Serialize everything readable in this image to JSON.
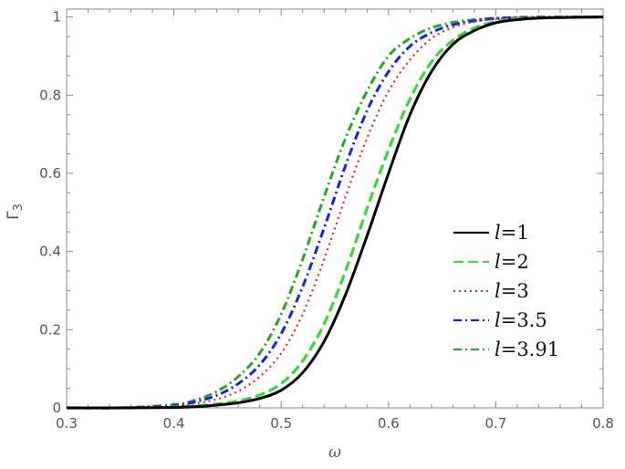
{
  "chart_data": {
    "type": "line",
    "title": "",
    "xlabel": "ω",
    "ylabel": "Γ",
    "ylabel_subscript": "3",
    "xlim": [
      0.3,
      0.8
    ],
    "ylim": [
      0,
      1.02
    ],
    "x_ticks": [
      "0.3",
      "0.4",
      "0.5",
      "0.6",
      "0.7",
      "0.8"
    ],
    "y_ticks": [
      "0",
      "0.2",
      "0.4",
      "0.6",
      "0.8",
      "1"
    ],
    "grid": false,
    "legend_position": "center-right",
    "x": [
      0.3,
      0.35,
      0.4,
      0.42,
      0.44,
      0.46,
      0.48,
      0.5,
      0.52,
      0.54,
      0.56,
      0.58,
      0.6,
      0.62,
      0.64,
      0.66,
      0.68,
      0.7,
      0.72,
      0.75,
      0.8
    ],
    "series": [
      {
        "name": "l=1",
        "label_prefix": "l",
        "label_suffix": "=1",
        "color": "#000000",
        "dash": "solid",
        "values": [
          0.0,
          0.0,
          0.001,
          0.003,
          0.007,
          0.013,
          0.024,
          0.045,
          0.09,
          0.17,
          0.29,
          0.44,
          0.6,
          0.75,
          0.86,
          0.93,
          0.965,
          0.985,
          0.993,
          0.998,
          1.0
        ]
      },
      {
        "name": "l=2",
        "label_prefix": "l",
        "label_suffix": "=2",
        "color": "#33dd33",
        "dash": "dashed",
        "values": [
          0.0,
          0.0,
          0.002,
          0.005,
          0.01,
          0.018,
          0.033,
          0.062,
          0.12,
          0.215,
          0.35,
          0.51,
          0.66,
          0.79,
          0.885,
          0.94,
          0.972,
          0.988,
          0.995,
          0.998,
          1.0
        ]
      },
      {
        "name": "l=3",
        "label_prefix": "l",
        "label_suffix": "=3",
        "color": "#ee2222",
        "dash": "dotted",
        "values": [
          0.0,
          0.0,
          0.004,
          0.011,
          0.022,
          0.043,
          0.08,
          0.14,
          0.24,
          0.38,
          0.54,
          0.69,
          0.81,
          0.89,
          0.945,
          0.973,
          0.988,
          0.995,
          0.998,
          0.999,
          1.0
        ]
      },
      {
        "name": "l=3.5",
        "label_prefix": "l",
        "label_suffix": "=3.5",
        "color": "#1122ee",
        "dash": "dashdot",
        "values": [
          0.0,
          0.0,
          0.006,
          0.016,
          0.032,
          0.062,
          0.11,
          0.19,
          0.31,
          0.46,
          0.62,
          0.76,
          0.86,
          0.925,
          0.96,
          0.98,
          0.99,
          0.996,
          0.998,
          0.999,
          1.0
        ]
      },
      {
        "name": "l=3.91",
        "label_prefix": "l",
        "label_suffix": "=3.91",
        "color": "#22aa22",
        "dash": "dashdot",
        "values": [
          0.0,
          0.0,
          0.008,
          0.02,
          0.042,
          0.08,
          0.14,
          0.24,
          0.38,
          0.54,
          0.69,
          0.81,
          0.9,
          0.945,
          0.972,
          0.986,
          0.993,
          0.997,
          0.999,
          1.0,
          1.0
        ]
      }
    ]
  }
}
